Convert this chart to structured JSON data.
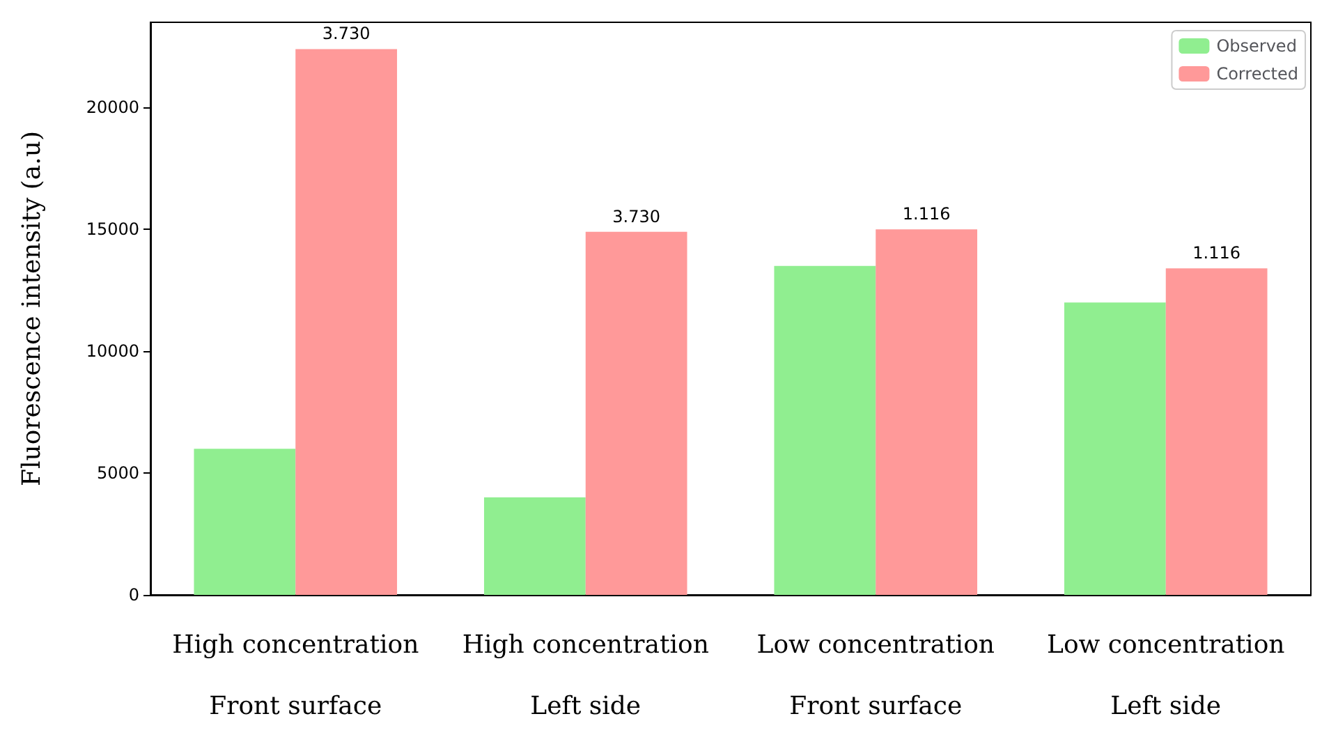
{
  "chart_data": {
    "type": "bar",
    "ylabel": "Fluorescence intensity (a.u)",
    "categories": [
      "High concentration\nFront surface",
      "High concentration\nLeft side",
      "Low concentration\nFront surface",
      "Low concentration\nLeft side"
    ],
    "series": [
      {
        "name": "Observed",
        "color": "#90ee90",
        "values": [
          6000,
          4000,
          13500,
          12000
        ]
      },
      {
        "name": "Corrected",
        "color": "#ff9999",
        "values": [
          22400,
          14900,
          15000,
          13400
        ]
      }
    ],
    "annotations": [
      {
        "text": "3.730",
        "x": "High concentration\nFront surface",
        "y": 22400
      },
      {
        "text": "3.730",
        "x": "High concentration\nLeft side",
        "y": 14900
      },
      {
        "text": "1.116",
        "x": "Low concentration\nFront surface",
        "y": 15000
      },
      {
        "text": "1.116",
        "x": "Low concentration\nLeft side",
        "y": 13400
      }
    ],
    "ylim": [
      0,
      23500
    ],
    "yticks": [
      0,
      5000,
      10000,
      15000,
      20000
    ],
    "grid": false,
    "legend": "top right"
  }
}
